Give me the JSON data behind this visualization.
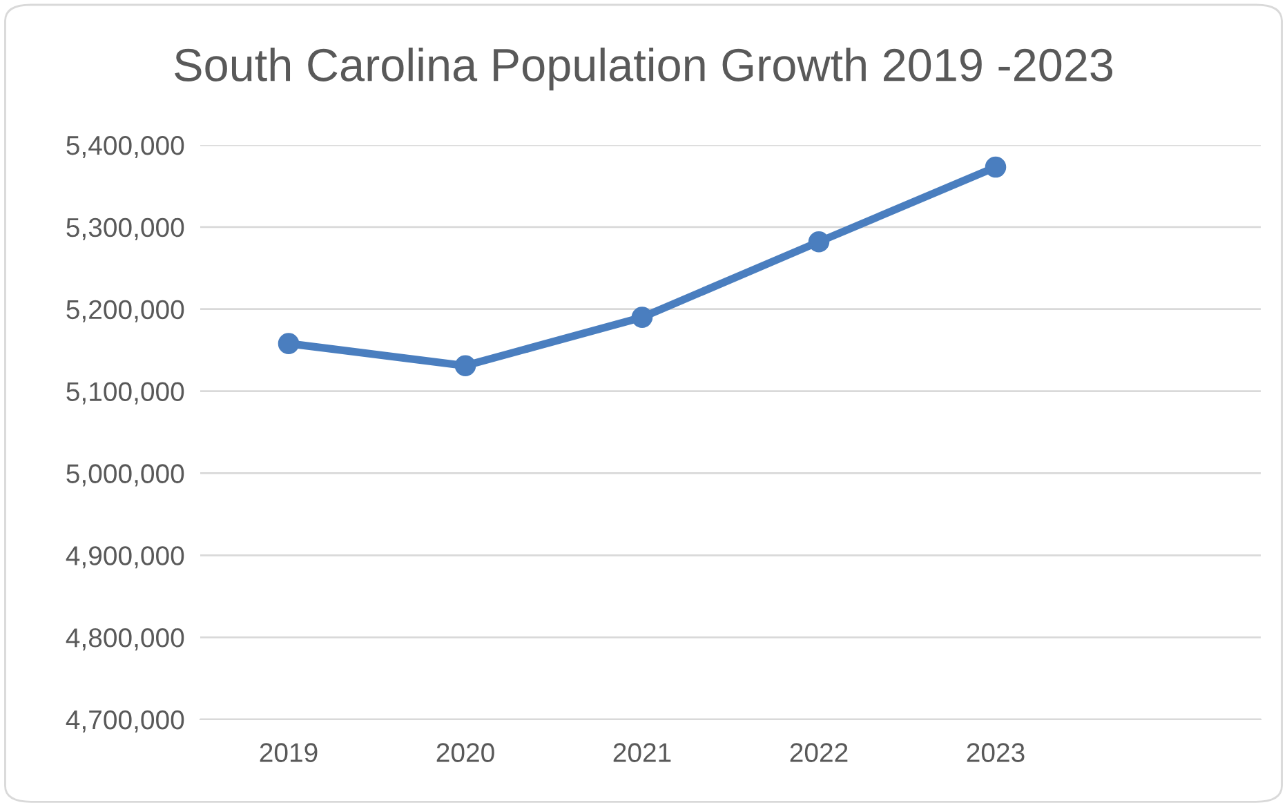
{
  "chart_data": {
    "type": "line",
    "title": "South Carolina Population Growth 2019 -2023",
    "categories": [
      "2019",
      "2020",
      "2021",
      "2022",
      "2023",
      null
    ],
    "series": [
      {
        "color": "#4a7ebf",
        "values": [
          5158000,
          5131000,
          5190000,
          5282000,
          5373000,
          null
        ]
      }
    ],
    "ylim": [
      4700000,
      5400000
    ],
    "yticks": [
      {
        "value": 4700000,
        "label": "4,700,000"
      },
      {
        "value": 4800000,
        "label": "4,800,000"
      },
      {
        "value": 4900000,
        "label": "4,900,000"
      },
      {
        "value": 5000000,
        "label": "5,000,000"
      },
      {
        "value": 5100000,
        "label": "5,100,000"
      },
      {
        "value": 5200000,
        "label": "5,200,000"
      },
      {
        "value": 5300000,
        "label": "5,300,000"
      },
      {
        "value": 5400000,
        "label": "5,400,000"
      }
    ],
    "grid": "y",
    "marker": "circle",
    "line_style": "solid"
  }
}
